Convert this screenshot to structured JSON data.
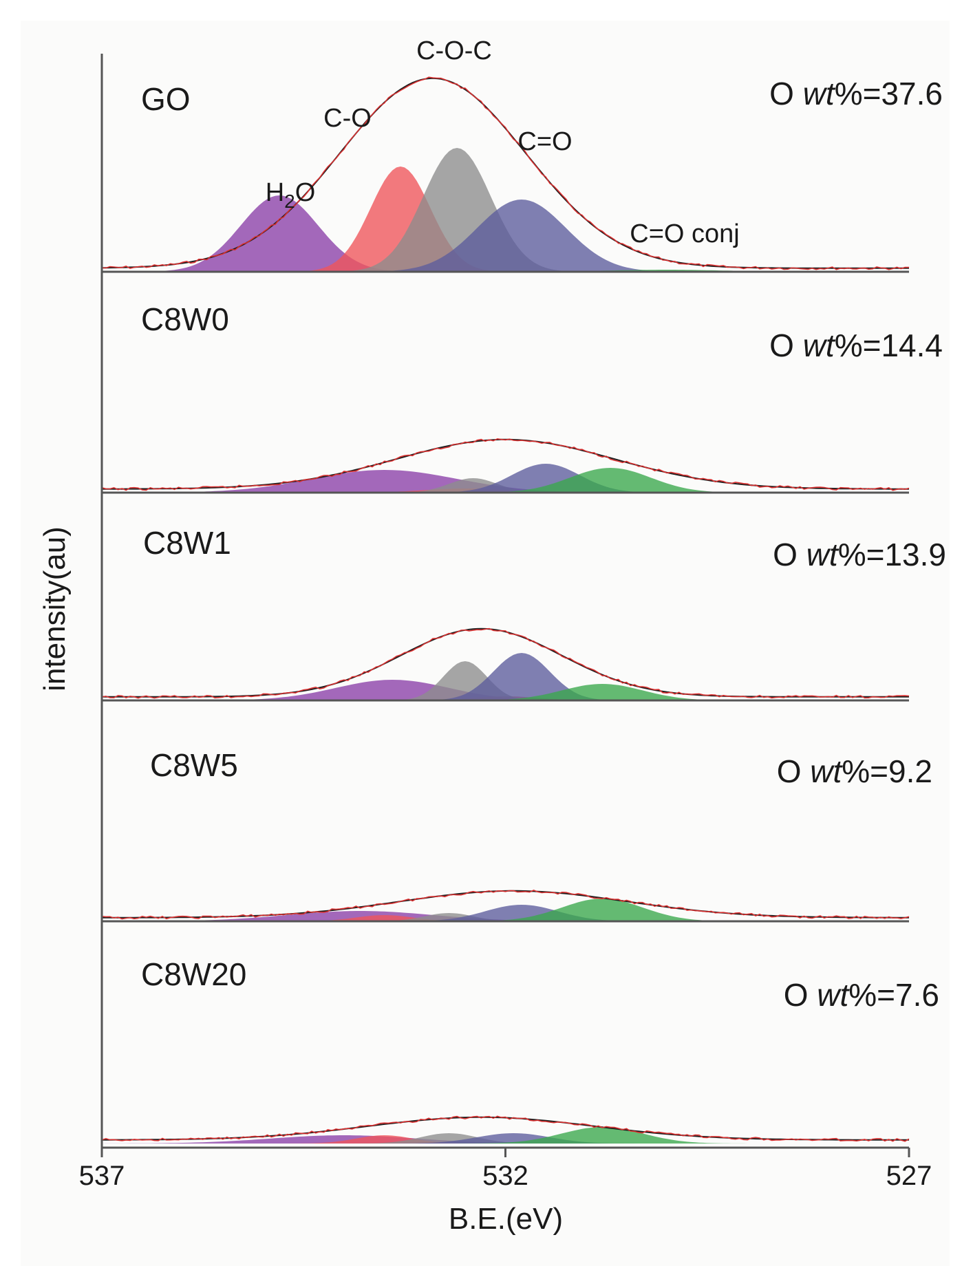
{
  "chart_data": {
    "type": "area",
    "title": "",
    "xlabel": "B.E.(eV)",
    "ylabel": "intensity(au)",
    "xlim": [
      537,
      527
    ],
    "x_ticks": [
      537,
      532,
      527
    ],
    "colors": {
      "H2O": "#8b3fa8",
      "C-O": "#f0545a",
      "C-O-C": "#8d8d8d",
      "C=O": "#5c5c9c",
      "C=O conj": "#3aa84b",
      "envelope": "#d93030",
      "fit": "#1e1e1e"
    },
    "component_labels": [
      {
        "key": "H2O",
        "label_main": "H",
        "label_sub": "2",
        "label_tail": "O"
      },
      {
        "key": "C-O",
        "label": "C-O"
      },
      {
        "key": "C-O-C",
        "label": "C-O-C"
      },
      {
        "key": "C=O",
        "label": "C=O"
      },
      {
        "key": "C=O conj",
        "label": "C=O conj"
      }
    ],
    "panels": [
      {
        "name": "GO",
        "o_prefix": "O ",
        "o_italic": "wt",
        "o_suffix": "%=37.6",
        "o_wt_percent": 37.6,
        "components": [
          {
            "key": "H2O",
            "center": 534.8,
            "height": 0.37,
            "sigma": 0.48
          },
          {
            "key": "C-O",
            "center": 533.3,
            "height": 0.51,
            "sigma": 0.37
          },
          {
            "key": "C-O-C",
            "center": 532.6,
            "height": 0.6,
            "sigma": 0.42
          },
          {
            "key": "C=O",
            "center": 531.8,
            "height": 0.35,
            "sigma": 0.55
          },
          {
            "key": "C=O conj",
            "center": 530.0,
            "height": 0.01,
            "sigma": 0.7
          }
        ],
        "envelope": {
          "center": 532.9,
          "height": 0.92,
          "sigma": 1.15
        }
      },
      {
        "name": "C8W0",
        "o_prefix": "O ",
        "o_italic": "wt",
        "o_suffix": "%=14.4",
        "o_wt_percent": 14.4,
        "components": [
          {
            "key": "H2O",
            "center": 533.5,
            "height": 0.11,
            "sigma": 0.9
          },
          {
            "key": "C-O",
            "center": 532.5,
            "height": 0.02,
            "sigma": 0.5
          },
          {
            "key": "C-O-C",
            "center": 532.4,
            "height": 0.07,
            "sigma": 0.3
          },
          {
            "key": "C=O",
            "center": 531.5,
            "height": 0.14,
            "sigma": 0.42
          },
          {
            "key": "C=O conj",
            "center": 530.7,
            "height": 0.12,
            "sigma": 0.5
          }
        ],
        "envelope": {
          "center": 532.0,
          "height": 0.24,
          "sigma": 1.35
        }
      },
      {
        "name": "C8W1",
        "o_prefix": "O ",
        "o_italic": "wt",
        "o_suffix": "%=13.9",
        "o_wt_percent": 13.9,
        "components": [
          {
            "key": "H2O",
            "center": 533.4,
            "height": 0.1,
            "sigma": 0.7
          },
          {
            "key": "C-O",
            "center": 532.0,
            "height": 0.02,
            "sigma": 0.4
          },
          {
            "key": "C-O-C",
            "center": 532.5,
            "height": 0.19,
            "sigma": 0.27
          },
          {
            "key": "C=O",
            "center": 531.8,
            "height": 0.23,
            "sigma": 0.35
          },
          {
            "key": "C=O conj",
            "center": 530.8,
            "height": 0.08,
            "sigma": 0.5
          }
        ],
        "envelope": {
          "center": 532.3,
          "height": 0.33,
          "sigma": 1.0
        }
      },
      {
        "name": "C8W5",
        "o_prefix": "O ",
        "o_italic": "wt",
        "o_suffix": "%=9.2",
        "o_wt_percent": 9.2,
        "components": [
          {
            "key": "H2O",
            "center": 533.8,
            "height": 0.05,
            "sigma": 0.9
          },
          {
            "key": "C-O",
            "center": 533.5,
            "height": 0.03,
            "sigma": 0.35
          },
          {
            "key": "C-O-C",
            "center": 532.7,
            "height": 0.04,
            "sigma": 0.3
          },
          {
            "key": "C=O",
            "center": 531.8,
            "height": 0.08,
            "sigma": 0.45
          },
          {
            "key": "C=O conj",
            "center": 530.8,
            "height": 0.11,
            "sigma": 0.5
          }
        ],
        "envelope": {
          "center": 531.9,
          "height": 0.13,
          "sigma": 1.4
        }
      },
      {
        "name": "C8W20",
        "o_prefix": "O ",
        "o_italic": "wt",
        "o_suffix": "%=7.6",
        "o_wt_percent": 7.6,
        "components": [
          {
            "key": "H2O",
            "center": 534.0,
            "height": 0.04,
            "sigma": 0.9
          },
          {
            "key": "C-O",
            "center": 533.5,
            "height": 0.04,
            "sigma": 0.35
          },
          {
            "key": "C-O-C",
            "center": 532.7,
            "height": 0.05,
            "sigma": 0.35
          },
          {
            "key": "C=O",
            "center": 531.9,
            "height": 0.05,
            "sigma": 0.45
          },
          {
            "key": "C=O conj",
            "center": 530.8,
            "height": 0.08,
            "sigma": 0.5
          }
        ],
        "envelope": {
          "center": 532.3,
          "height": 0.11,
          "sigma": 1.4
        }
      }
    ]
  }
}
